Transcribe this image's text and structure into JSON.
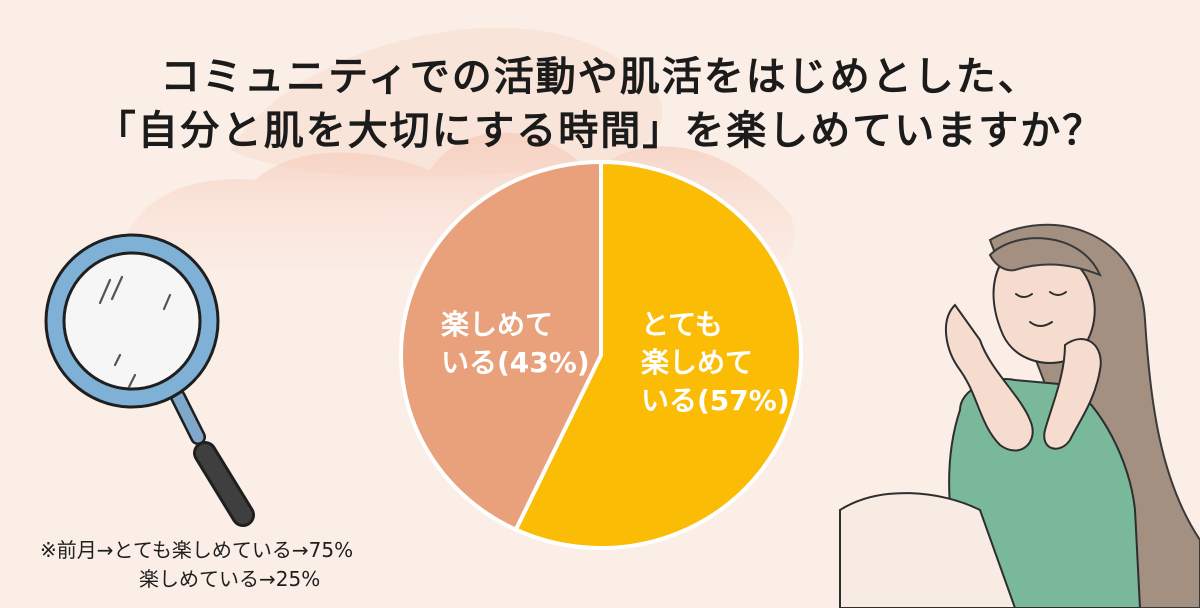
{
  "title": {
    "line1": "コミュニティでの活動や肌活をはじめとした、",
    "line2": "「自分と肌を大切にする時間」を楽しめていますか？"
  },
  "chart_data": {
    "type": "pie",
    "title": "コミュニティでの活動や肌活をはじめとした、「自分と肌を大切にする時間」を楽しめていますか？",
    "slices": [
      {
        "label_lines": [
          "とても",
          "楽しめて",
          "いる(57%)"
        ],
        "value": 57,
        "color": "#fbbc05"
      },
      {
        "label_lines": [
          "楽しめて",
          "いる(43%)"
        ],
        "value": 43,
        "color": "#e8a17a"
      }
    ],
    "start": "12 o'clock",
    "direction": "clockwise",
    "legend": "none"
  },
  "notes": {
    "line1": "※前月→とても楽しめている→75%",
    "line2": "楽しめている→25%"
  },
  "illustrations": {
    "left": "magnifier-icon",
    "right": "relaxed-woman-illustration"
  },
  "colors": {
    "background": "#fbeee7",
    "blob": "#f7d8ca",
    "title": "#1b1b1b",
    "slice_border": "#ffffff"
  }
}
